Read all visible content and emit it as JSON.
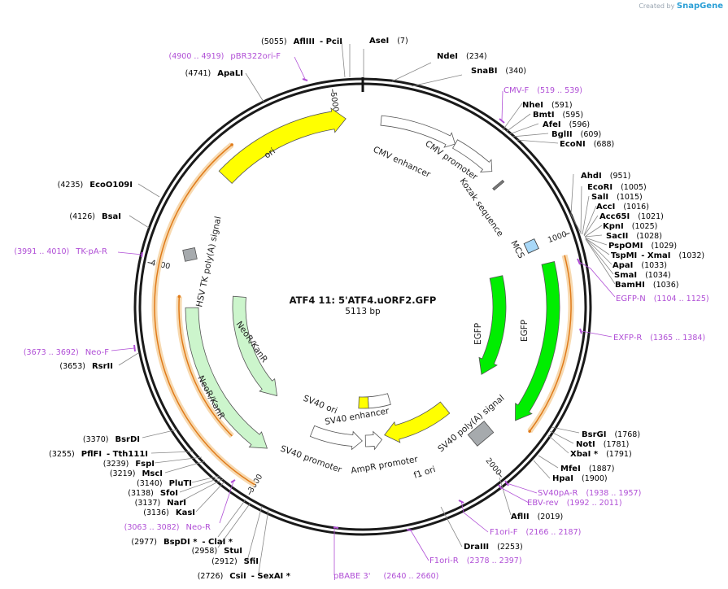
{
  "credit": {
    "text": "Created by",
    "brand": "SnapGene"
  },
  "plasmid": {
    "name": "ATF4 11: 5'ATF4.uORF2.GFP",
    "size_label": "5113 bp",
    "length": 5113
  },
  "ticks": [
    {
      "bp": 1000,
      "label": "1000"
    },
    {
      "bp": 2000,
      "label": "2000"
    },
    {
      "bp": 3000,
      "label": "3000"
    },
    {
      "bp": 4000,
      "label": "4000"
    },
    {
      "bp": 5000,
      "label": "5000"
    }
  ],
  "sites": [
    {
      "name": "AseI",
      "pos": "(7)",
      "side": "R"
    },
    {
      "name": "NdeI",
      "pos": "(234)",
      "side": "R"
    },
    {
      "name": "SnaBI",
      "pos": "(340)",
      "side": "R"
    },
    {
      "name": "NheI",
      "pos": "(591)",
      "side": "R"
    },
    {
      "name": "BmtI",
      "pos": "(595)",
      "side": "R"
    },
    {
      "name": "AfeI",
      "pos": "(596)",
      "side": "R"
    },
    {
      "name": "BglII",
      "pos": "(609)",
      "side": "R"
    },
    {
      "name": "EcoNI",
      "pos": "(688)",
      "side": "R"
    },
    {
      "name": "AhdI",
      "pos": "(951)",
      "side": "R"
    },
    {
      "name": "EcoRI",
      "pos": "(1005)",
      "side": "R"
    },
    {
      "name": "SalI",
      "pos": "(1015)",
      "side": "R"
    },
    {
      "name": "AccI",
      "pos": "(1016)",
      "side": "R"
    },
    {
      "name": "Acc65I",
      "pos": "(1021)",
      "side": "R"
    },
    {
      "name": "KpnI",
      "pos": "(1025)",
      "side": "R"
    },
    {
      "name": "SacII",
      "pos": "(1028)",
      "side": "R"
    },
    {
      "name": "PspOMI",
      "pos": "(1029)",
      "side": "R"
    },
    {
      "name": "TspMI",
      "pos": "",
      "side": "R"
    },
    {
      "name": "- XmaI",
      "pos": "(1032)",
      "side": "R"
    },
    {
      "name": "ApaI",
      "pos": "(1033)",
      "side": "R"
    },
    {
      "name": "SmaI",
      "pos": "(1034)",
      "side": "R"
    },
    {
      "name": "BamHI",
      "pos": "(1036)",
      "side": "R"
    },
    {
      "name": "BsrGI",
      "pos": "(1768)",
      "side": "R"
    },
    {
      "name": "NotI",
      "pos": "(1781)",
      "side": "R"
    },
    {
      "name": "XbaI *",
      "pos": "(1791)",
      "side": "R"
    },
    {
      "name": "MfeI",
      "pos": "(1887)",
      "side": "R"
    },
    {
      "name": "HpaI",
      "pos": "(1900)",
      "side": "R"
    },
    {
      "name": "AflII",
      "pos": "(2019)",
      "side": "R"
    },
    {
      "name": "DraIII",
      "pos": "(2253)",
      "side": "R"
    },
    {
      "name": "CsiI",
      "pos": "(2726)",
      "side": "L"
    },
    {
      "name": "- SexAI *",
      "pos": "",
      "side": "L"
    },
    {
      "name": "SfiI",
      "pos": "(2912)",
      "side": "L"
    },
    {
      "name": "StuI",
      "pos": "(2958)",
      "side": "L"
    },
    {
      "name": "BspDI *",
      "pos": "(2977)",
      "side": "L"
    },
    {
      "name": "- ClaI *",
      "pos": "",
      "side": "L"
    },
    {
      "name": "KasI",
      "pos": "(3136)",
      "side": "L"
    },
    {
      "name": "NarI",
      "pos": "(3137)",
      "side": "L"
    },
    {
      "name": "SfoI",
      "pos": "(3138)",
      "side": "L"
    },
    {
      "name": "PluTI",
      "pos": "(3140)",
      "side": "L"
    },
    {
      "name": "MscI",
      "pos": "(3219)",
      "side": "L"
    },
    {
      "name": "FspI",
      "pos": "(3239)",
      "side": "L"
    },
    {
      "name": "PflFI",
      "pos": "(3255)",
      "side": "L"
    },
    {
      "name": "- Tth111I",
      "pos": "",
      "side": "L"
    },
    {
      "name": "BsrDI",
      "pos": "(3370)",
      "side": "L"
    },
    {
      "name": "RsrII",
      "pos": "(3653)",
      "side": "L"
    },
    {
      "name": "BsaI",
      "pos": "(4126)",
      "side": "L"
    },
    {
      "name": "EcoO109I",
      "pos": "(4235)",
      "side": "L"
    },
    {
      "name": "ApaLI",
      "pos": "(4741)",
      "side": "L"
    },
    {
      "name": "AflIII",
      "pos": "(5055)",
      "side": "L"
    },
    {
      "name": "- PciI",
      "pos": "",
      "side": "L"
    }
  ],
  "primers": [
    {
      "name": "pBR322ori-F",
      "range": "(4900 .. 4919)"
    },
    {
      "name": "CMV-F",
      "range": "(519 .. 539)"
    },
    {
      "name": "EGFP-N",
      "range": "(1104 .. 1125)"
    },
    {
      "name": "EXFP-R",
      "range": "(1365 .. 1384)"
    },
    {
      "name": "SV40pA-R",
      "range": "(1938 .. 1957)"
    },
    {
      "name": "EBV-rev",
      "range": "(1992 .. 2011)"
    },
    {
      "name": "F1ori-F",
      "range": "(2166 .. 2187)"
    },
    {
      "name": "F1ori-R",
      "range": "(2378 .. 2397)"
    },
    {
      "name": "pBABE 3'",
      "range": "(2640 .. 2660)"
    },
    {
      "name": "Neo-R",
      "range": "(3063 .. 3082)"
    },
    {
      "name": "Neo-F",
      "range": "(3673 .. 3692)"
    },
    {
      "name": "TK-pA-R",
      "range": "(3991 .. 4010)"
    }
  ],
  "features": [
    {
      "name": "CMV enhancer"
    },
    {
      "name": "CMV promoter"
    },
    {
      "name": "Kozak sequence"
    },
    {
      "name": "MCS"
    },
    {
      "name": "EGFP"
    },
    {
      "name": "EGFP"
    },
    {
      "name": "SV40 poly(A) signal"
    },
    {
      "name": "f1 ori"
    },
    {
      "name": "AmpR promoter"
    },
    {
      "name": "SV40 promoter"
    },
    {
      "name": "SV40 enhancer"
    },
    {
      "name": "SV40 ori"
    },
    {
      "name": "NeoR/KanR"
    },
    {
      "name": "NeoR/KanR"
    },
    {
      "name": "HSV TK poly(A) signal"
    },
    {
      "name": "ori"
    }
  ],
  "colors": {
    "backbone": "#1a1a1a",
    "ori": "#ffff00",
    "egfp": "#00ee00",
    "neo": "#ccf5cc",
    "grey_feature": "#a6aaad",
    "mcs": "#a8d8f8",
    "primer": "#b04fd6",
    "orf_highlight": "#f3c28a",
    "orf_line": "#e07b1a"
  }
}
